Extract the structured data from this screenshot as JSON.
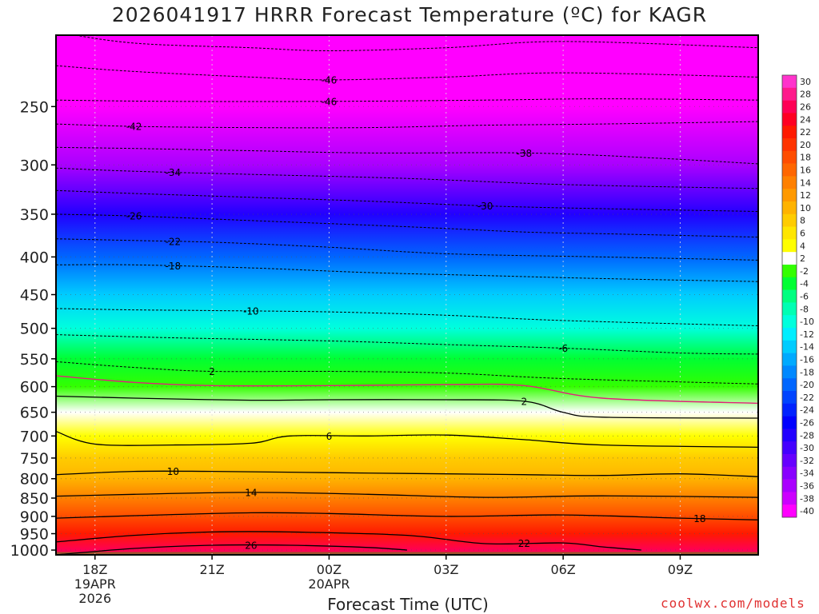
{
  "title": "2026041917 HRRR Forecast Temperature (ºC) for KAGR",
  "credit": "coolwx.com/models",
  "colors": {
    "frame": "#000000",
    "freezing_line": "#e0207a",
    "ground": "#a0522d",
    "gridline": "#aaaaaa"
  },
  "chart_data": {
    "type": "heatmap",
    "title": "2026041917 HRRR Forecast Temperature (ºC) for KAGR",
    "xlabel": "Forecast Time (UTC)",
    "ylabel": "",
    "x_ticks": [
      {
        "hour": 18,
        "lines": [
          "18Z",
          "19APR",
          "2026"
        ]
      },
      {
        "hour": 21,
        "lines": [
          "21Z"
        ]
      },
      {
        "hour": 24,
        "lines": [
          "00Z",
          "20APR"
        ]
      },
      {
        "hour": 27,
        "lines": [
          "03Z"
        ]
      },
      {
        "hour": 30,
        "lines": [
          "06Z"
        ]
      },
      {
        "hour": 33,
        "lines": [
          "09Z"
        ]
      }
    ],
    "xlim": [
      17,
      35
    ],
    "y_ticks": [
      250,
      300,
      350,
      400,
      450,
      500,
      550,
      600,
      650,
      700,
      750,
      800,
      850,
      900,
      950,
      1000
    ],
    "ylim": [
      1015,
      200
    ],
    "y_scale": "log-pressure (hPa)",
    "grid": true,
    "colorbar": {
      "levels": [
        30,
        28,
        26,
        24,
        22,
        20,
        18,
        16,
        14,
        12,
        10,
        8,
        6,
        4,
        2,
        -2,
        -4,
        -6,
        -8,
        -10,
        -12,
        -14,
        -16,
        -18,
        -20,
        -22,
        -24,
        -26,
        -28,
        -30,
        -32,
        -34,
        -36,
        -38,
        -40
      ],
      "colors": [
        "#ff33cc",
        "#ff1a8c",
        "#ff0055",
        "#ff0022",
        "#ff1a00",
        "#ff3300",
        "#ff4d00",
        "#ff6600",
        "#ff8000",
        "#ff9900",
        "#ffb300",
        "#ffcc00",
        "#ffe600",
        "#ffff00",
        "#ffffff",
        "#33ff00",
        "#00ff33",
        "#00ff80",
        "#00ffb3",
        "#00ffdd",
        "#00eeff",
        "#00ccff",
        "#00aaff",
        "#0088ff",
        "#0066ff",
        "#0044ff",
        "#0022ff",
        "#0000ff",
        "#2200ff",
        "#4400ff",
        "#6600ff",
        "#8800ff",
        "#aa00ff",
        "#cc00ff",
        "#ff00ff"
      ]
    },
    "profile": [
      {
        "pressure": 1000,
        "temperature": 27
      },
      {
        "pressure": 950,
        "temperature": 23
      },
      {
        "pressure": 900,
        "temperature": 19
      },
      {
        "pressure": 850,
        "temperature": 15
      },
      {
        "pressure": 800,
        "temperature": 11
      },
      {
        "pressure": 750,
        "temperature": 8
      },
      {
        "pressure": 700,
        "temperature": 5
      },
      {
        "pressure": 650,
        "temperature": 3
      },
      {
        "pressure": 600,
        "temperature": 0
      },
      {
        "pressure": 550,
        "temperature": -4
      },
      {
        "pressure": 500,
        "temperature": -9
      },
      {
        "pressure": 450,
        "temperature": -14
      },
      {
        "pressure": 400,
        "temperature": -20
      },
      {
        "pressure": 350,
        "temperature": -27
      },
      {
        "pressure": 300,
        "temperature": -35
      },
      {
        "pressure": 250,
        "temperature": -44
      },
      {
        "pressure": 200,
        "temperature": -52
      }
    ],
    "contours": [
      {
        "label": "-46",
        "style": "dashed",
        "points": [
          [
            17,
            198
          ],
          [
            19,
            205
          ],
          [
            22,
            208
          ],
          [
            24,
            210
          ],
          [
            27,
            208
          ],
          [
            30,
            204
          ],
          [
            35,
            208
          ]
        ]
      },
      {
        "label": "-46",
        "style": "dashed",
        "points": [
          [
            17,
            220
          ],
          [
            19,
            224
          ],
          [
            22,
            228
          ],
          [
            24,
            230
          ],
          [
            27,
            228
          ],
          [
            30,
            225
          ],
          [
            35,
            228
          ]
        ],
        "label_at": 24
      },
      {
        "label": "-46",
        "style": "dashed",
        "points": [
          [
            17,
            245
          ],
          [
            20,
            246
          ],
          [
            24,
            246
          ],
          [
            28,
            245
          ],
          [
            31,
            244
          ],
          [
            35,
            245
          ]
        ],
        "label_at": 24
      },
      {
        "label": "-42",
        "style": "dashed",
        "points": [
          [
            17,
            264
          ],
          [
            19,
            266
          ],
          [
            22,
            267
          ],
          [
            25,
            267
          ],
          [
            28,
            265
          ],
          [
            31,
            264
          ],
          [
            35,
            262
          ]
        ],
        "label_at": 19
      },
      {
        "label": "-38",
        "style": "dashed",
        "points": [
          [
            17,
            284
          ],
          [
            19,
            285
          ],
          [
            22,
            287
          ],
          [
            25,
            289
          ],
          [
            29,
            289
          ],
          [
            32,
            293
          ],
          [
            35,
            299
          ]
        ],
        "label_at": 29
      },
      {
        "label": "-34",
        "style": "dashed",
        "points": [
          [
            17,
            303
          ],
          [
            19,
            306
          ],
          [
            22,
            309
          ],
          [
            26,
            313
          ],
          [
            30,
            319
          ],
          [
            35,
            323
          ]
        ],
        "label_at": 20
      },
      {
        "label": "-30",
        "style": "dashed",
        "points": [
          [
            17,
            325
          ],
          [
            19,
            328
          ],
          [
            22,
            332
          ],
          [
            25,
            336
          ],
          [
            28,
            341
          ],
          [
            31,
            344
          ],
          [
            35,
            347
          ]
        ],
        "label_at": 28
      },
      {
        "label": "-26",
        "style": "dashed",
        "points": [
          [
            17,
            350
          ],
          [
            19,
            352
          ],
          [
            22,
            357
          ],
          [
            26,
            364
          ],
          [
            29,
            370
          ],
          [
            31,
            372
          ],
          [
            35,
            376
          ]
        ],
        "label_at": 19
      },
      {
        "label": "-22",
        "style": "dashed",
        "points": [
          [
            17,
            378
          ],
          [
            19,
            380
          ],
          [
            21,
            382
          ],
          [
            24,
            388
          ],
          [
            27,
            396
          ],
          [
            31,
            400
          ],
          [
            35,
            404
          ]
        ],
        "label_at": 20
      },
      {
        "label": "-18",
        "style": "dashed",
        "points": [
          [
            17,
            410
          ],
          [
            19,
            410
          ],
          [
            22,
            414
          ],
          [
            25,
            420
          ],
          [
            28,
            424
          ],
          [
            31,
            428
          ],
          [
            35,
            432
          ]
        ],
        "label_at": 20
      },
      {
        "label": "-10",
        "style": "dashed",
        "points": [
          [
            17,
            470
          ],
          [
            19,
            472
          ],
          [
            21,
            473
          ],
          [
            24,
            475
          ],
          [
            27,
            480
          ],
          [
            30,
            488
          ],
          [
            35,
            496
          ]
        ],
        "label_at": 22
      },
      {
        "label": "-6",
        "style": "dashed",
        "points": [
          [
            17,
            510
          ],
          [
            20,
            515
          ],
          [
            24,
            520
          ],
          [
            27,
            526
          ],
          [
            30,
            532
          ],
          [
            33,
            540
          ],
          [
            35,
            542
          ]
        ],
        "label_at": 30
      },
      {
        "label": "2",
        "style": "dashed",
        "points": [
          [
            17,
            555
          ],
          [
            19,
            565
          ],
          [
            21,
            572
          ],
          [
            24,
            572
          ],
          [
            27,
            575
          ],
          [
            30,
            585
          ],
          [
            35,
            595
          ]
        ],
        "label_at": 21
      },
      {
        "label": "",
        "style": "freezing",
        "points": [
          [
            17,
            580
          ],
          [
            19,
            592
          ],
          [
            21,
            598
          ],
          [
            24,
            598
          ],
          [
            27,
            596
          ],
          [
            29,
            598
          ],
          [
            31,
            622
          ],
          [
            35,
            632
          ]
        ]
      },
      {
        "label": "2",
        "style": "solid",
        "points": [
          [
            17,
            618
          ],
          [
            19,
            622
          ],
          [
            22,
            626
          ],
          [
            24,
            625
          ],
          [
            27,
            625
          ],
          [
            29,
            628
          ],
          [
            30,
            650
          ],
          [
            31,
            660
          ],
          [
            35,
            662
          ]
        ],
        "label_at": 29
      },
      {
        "label": "6",
        "style": "solid",
        "points": [
          [
            17,
            690
          ],
          [
            18,
            718
          ],
          [
            20,
            720
          ],
          [
            22,
            716
          ],
          [
            23,
            700
          ],
          [
            25,
            700
          ],
          [
            27,
            698
          ],
          [
            29,
            708
          ],
          [
            31,
            720
          ],
          [
            35,
            725
          ]
        ],
        "label_at": 24
      },
      {
        "label": "10",
        "style": "solid",
        "points": [
          [
            17,
            790
          ],
          [
            19,
            782
          ],
          [
            21,
            782
          ],
          [
            24,
            785
          ],
          [
            27,
            788
          ],
          [
            29,
            790
          ],
          [
            31,
            792
          ],
          [
            33,
            788
          ],
          [
            35,
            795
          ]
        ],
        "label_at": 20
      },
      {
        "label": "14",
        "style": "solid",
        "points": [
          [
            17,
            845
          ],
          [
            19,
            840
          ],
          [
            22,
            835
          ],
          [
            25,
            840
          ],
          [
            28,
            848
          ],
          [
            31,
            844
          ],
          [
            35,
            848
          ]
        ],
        "label_at": 22
      },
      {
        "label": "18",
        "style": "solid",
        "points": [
          [
            17,
            905
          ],
          [
            19,
            898
          ],
          [
            22,
            890
          ],
          [
            24,
            892
          ],
          [
            27,
            900
          ],
          [
            30,
            896
          ],
          [
            33,
            905
          ],
          [
            35,
            910
          ]
        ],
        "label_at": 33.5
      },
      {
        "label": "22",
        "style": "solid",
        "points": [
          [
            17,
            975
          ],
          [
            19,
            955
          ],
          [
            21,
            945
          ],
          [
            23,
            945
          ],
          [
            26,
            955
          ],
          [
            28,
            980
          ],
          [
            30,
            978
          ],
          [
            31,
            990
          ],
          [
            32,
            1000
          ]
        ],
        "label_at": 29
      },
      {
        "label": "26",
        "style": "solid",
        "points": [
          [
            17,
            1015
          ],
          [
            19,
            995
          ],
          [
            21,
            985
          ],
          [
            23,
            985
          ],
          [
            25,
            992
          ],
          [
            26,
            1000
          ]
        ],
        "label_at": 22
      }
    ]
  }
}
